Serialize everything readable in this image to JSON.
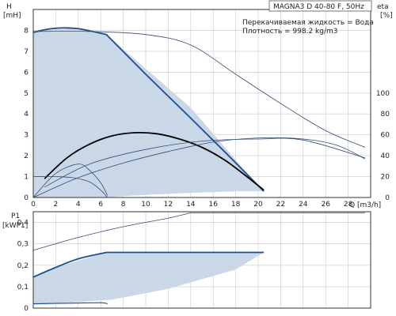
{
  "chart_data": [
    {
      "type": "line",
      "title": "MAGNA3 D 40-80 F, 50Hz",
      "annotations": [
        "Перекачиваемая жидкость = Вода",
        "Плотность = 998.2 kg/m3"
      ],
      "ylabel_top": "H",
      "ylabel_unit": "[mH]",
      "y2label_top": "eta",
      "y2label_unit": "[%]",
      "xlabel": "Q [m3/h]",
      "xlim": [
        0,
        30
      ],
      "ylim": [
        0,
        9
      ],
      "y2lim": [
        0,
        180
      ],
      "x_ticks": [
        0,
        2,
        4,
        6,
        8,
        10,
        12,
        14,
        16,
        18,
        20,
        22,
        24,
        26,
        28
      ],
      "y_ticks": [
        0,
        1,
        2,
        3,
        4,
        5,
        6,
        7,
        8
      ],
      "y2_ticks": [
        0,
        20,
        40,
        60,
        80,
        100
      ],
      "grid": true,
      "colors": {
        "area": "#c9d7e6",
        "max_curve": "#1f4e8c",
        "thin_curve": "#334d7a",
        "efficiency": "#000000"
      },
      "series": [
        {
          "role": "operating-area",
          "x": [
            0,
            3,
            6.5,
            14,
            20,
            20.5,
            18,
            13,
            9,
            6.3,
            5,
            2,
            0
          ],
          "y": [
            7.9,
            8.1,
            7.8,
            4.3,
            0.55,
            0.3,
            0.3,
            0.2,
            0.1,
            0,
            0,
            0,
            0
          ]
        },
        {
          "role": "max-curve",
          "x": [
            0,
            1,
            2,
            3,
            4,
            5,
            6.5,
            10,
            14,
            17,
            20.5
          ],
          "y": [
            7.9,
            8.03,
            8.1,
            8.12,
            8.08,
            7.98,
            7.8,
            5.9,
            3.8,
            2.2,
            0.3
          ]
        },
        {
          "role": "head-extended",
          "x": [
            0,
            5,
            10,
            14,
            18,
            22,
            26,
            29.5
          ],
          "y": [
            7.95,
            7.95,
            7.8,
            7.3,
            5.9,
            4.5,
            3.2,
            2.4
          ]
        },
        {
          "role": "efficiency-max",
          "x": [
            1,
            3,
            5,
            7,
            9,
            11,
            13,
            15,
            17,
            19,
            20.5
          ],
          "y": [
            0.9,
            1.9,
            2.55,
            2.95,
            3.1,
            3.05,
            2.8,
            2.4,
            1.8,
            1.0,
            0.35
          ]
        },
        {
          "role": "efficiency-extended",
          "x": [
            0,
            4,
            8,
            12,
            16,
            20,
            24,
            27,
            29.5
          ],
          "y2": [
            0,
            19,
            33,
            44,
            53,
            57,
            56,
            50,
            37
          ]
        },
        {
          "role": "min-curve",
          "x": [
            0,
            2,
            3.5,
            5,
            6,
            6.6
          ],
          "y": [
            1.0,
            1.0,
            0.95,
            0.75,
            0.35,
            0
          ]
        },
        {
          "role": "efficiency-min",
          "x": [
            0,
            2,
            4,
            5,
            6,
            6.6
          ],
          "y": [
            0,
            1.15,
            1.6,
            1.3,
            0.7,
            0.1
          ]
        },
        {
          "role": "efficiency-mid",
          "x": [
            1,
            5,
            10,
            15,
            20,
            24,
            29.5
          ],
          "y": [
            0.5,
            1.6,
            2.3,
            2.7,
            2.8,
            2.75,
            1.9
          ]
        }
      ]
    },
    {
      "type": "line",
      "ylabel_top": "P1",
      "ylabel_unit": "[kWP1]",
      "xlim": [
        0,
        30
      ],
      "ylim": [
        0,
        0.45
      ],
      "y_ticks": [
        0,
        0.1,
        0.2,
        0.3,
        0.4
      ],
      "y_tick_labels": [
        "0",
        "0,1",
        "0,2",
        "0,3",
        "0,4"
      ],
      "grid": true,
      "series": [
        {
          "role": "power-area",
          "x": [
            0,
            2,
            6.5,
            20.5,
            18,
            12,
            7,
            3,
            0
          ],
          "y": [
            0.145,
            0.19,
            0.26,
            0.26,
            0.18,
            0.09,
            0.04,
            0.025,
            0.02
          ]
        },
        {
          "role": "power-max",
          "x": [
            0,
            2,
            4,
            6.5,
            20.5
          ],
          "y": [
            0.145,
            0.19,
            0.23,
            0.26,
            0.26
          ]
        },
        {
          "role": "power-extended",
          "x": [
            0,
            4,
            8,
            12,
            14,
            29.5
          ],
          "y": [
            0.27,
            0.33,
            0.38,
            0.42,
            0.445,
            0.445
          ]
        },
        {
          "role": "power-min",
          "x": [
            0,
            3,
            6,
            6.6
          ],
          "y": [
            0.02,
            0.023,
            0.025,
            0.02
          ]
        }
      ]
    }
  ]
}
